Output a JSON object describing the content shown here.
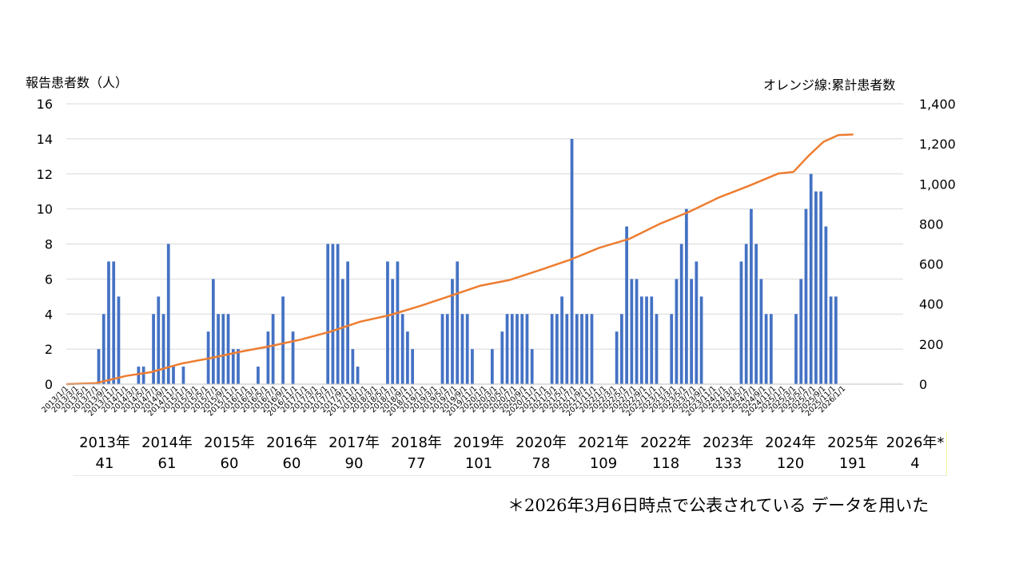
{
  "chart_data": {
    "type": "bar",
    "ylabel_left": "報告患者数（人）",
    "ylabel_right": "オレンジ線:累計患者数",
    "ylim_left": [
      0,
      16
    ],
    "ylim_right": [
      0,
      1400
    ],
    "yticks_left": [
      "0",
      "2",
      "4",
      "6",
      "8",
      "10",
      "12",
      "14",
      "16"
    ],
    "yticks_right": [
      "0",
      "200",
      "400",
      "600",
      "800",
      "1,000",
      "1,200",
      "1,400"
    ],
    "xticks": [
      "2013/1/1",
      "2013/3/1",
      "2013/5/1",
      "2013/7/1",
      "2013/9/1",
      "2013/11/1",
      "2014/1/1",
      "2014/3/1",
      "2014/5/1",
      "2014/7/1",
      "2014/9/1",
      "2014/11/1",
      "2015/1/1",
      "2015/3/1",
      "2015/5/1",
      "2015/7/1",
      "2015/9/1",
      "2015/11/1",
      "2016/1/1",
      "2016/3/1",
      "2016/5/1",
      "2016/7/1",
      "2016/9/1",
      "2016/11/1",
      "2017/1/1",
      "2017/3/1",
      "2017/5/1",
      "2017/7/1",
      "2017/9/1",
      "2017/11/1",
      "2018/1/1",
      "2018/3/1",
      "2018/5/1",
      "2018/7/1",
      "2018/9/1",
      "2018/11/1",
      "2019/1/1",
      "2019/3/1",
      "2019/5/1",
      "2019/7/1",
      "2019/9/1",
      "2019/11/1",
      "2020/1/1",
      "2020/3/1",
      "2020/5/1",
      "2020/7/1",
      "2020/9/1",
      "2020/11/1",
      "2021/1/1",
      "2021/3/1",
      "2021/5/1",
      "2021/7/1",
      "2021/9/1",
      "2021/11/1",
      "2022/1/1",
      "2022/3/1",
      "2022/5/1",
      "2022/7/1",
      "2022/9/1",
      "2022/11/1",
      "2023/1/1",
      "2023/3/1",
      "2023/5/1",
      "2023/7/1",
      "2023/9/1",
      "2023/11/1",
      "2024/1/1",
      "2024/3/1",
      "2024/5/1",
      "2024/7/1",
      "2024/9/1",
      "2024/11/1",
      "2025/1/1",
      "2025/3/1",
      "2025/5/1",
      "2025/7/1",
      "2025/9/1",
      "2025/11/1",
      "2026/1/1"
    ],
    "series": [
      {
        "name": "報告患者数",
        "type": "bar",
        "color": "#4472c4",
        "x": [
          "2013/7",
          "2013/8",
          "2013/9",
          "2013/10",
          "2013/11",
          "2014/3",
          "2014/4",
          "2014/6",
          "2014/7",
          "2014/8",
          "2014/9",
          "2014/10",
          "2014/12",
          "2015/5",
          "2015/6",
          "2015/7",
          "2015/8",
          "2015/9",
          "2015/10",
          "2015/11",
          "2016/3",
          "2016/5",
          "2016/6",
          "2016/8",
          "2016/10",
          "2017/5",
          "2017/6",
          "2017/7",
          "2017/8",
          "2017/9",
          "2017/10",
          "2017/11",
          "2018/5",
          "2018/6",
          "2018/7",
          "2018/8",
          "2018/9",
          "2018/10",
          "2019/4",
          "2019/5",
          "2019/6",
          "2019/7",
          "2019/8",
          "2019/9",
          "2019/10",
          "2020/2",
          "2020/4",
          "2020/5",
          "2020/6",
          "2020/7",
          "2020/8",
          "2020/9",
          "2020/10",
          "2021/2",
          "2021/3",
          "2021/4",
          "2021/5",
          "2021/6",
          "2021/7",
          "2021/8",
          "2021/9",
          "2021/10",
          "2022/3",
          "2022/4",
          "2022/5",
          "2022/6",
          "2022/7",
          "2022/8",
          "2022/9",
          "2022/10",
          "2022/11",
          "2023/2",
          "2023/3",
          "2023/4",
          "2023/5",
          "2023/6",
          "2023/7",
          "2023/8",
          "2024/4",
          "2024/5",
          "2024/6",
          "2024/7",
          "2024/8",
          "2024/9",
          "2024/10",
          "2025/3",
          "2025/4",
          "2025/5",
          "2025/6",
          "2025/7",
          "2025/8",
          "2025/9",
          "2025/10",
          "2025/11"
        ],
        "values": [
          2,
          4,
          7,
          7,
          5,
          1,
          1,
          4,
          5,
          4,
          8,
          1,
          1,
          3,
          6,
          4,
          4,
          4,
          2,
          2,
          1,
          3,
          4,
          5,
          3,
          8,
          8,
          8,
          6,
          7,
          2,
          1,
          7,
          6,
          7,
          4,
          3,
          2,
          4,
          4,
          6,
          7,
          4,
          4,
          2,
          2,
          3,
          4,
          4,
          4,
          4,
          4,
          2,
          4,
          4,
          5,
          4,
          14,
          4,
          4,
          4,
          4,
          3,
          4,
          9,
          6,
          6,
          5,
          5,
          5,
          4,
          4,
          6,
          8,
          10,
          6,
          7,
          5,
          7,
          8,
          10,
          8,
          6,
          4,
          4,
          4,
          6,
          10,
          12,
          11,
          11,
          9,
          5,
          5
        ]
      },
      {
        "name": "累計患者数",
        "type": "line",
        "color": "#ed7d31",
        "x": [
          "2013/1",
          "2013/7",
          "2014/1",
          "2014/6",
          "2014/12",
          "2015/6",
          "2015/12",
          "2016/6",
          "2016/12",
          "2017/6",
          "2017/12",
          "2018/6",
          "2018/12",
          "2019/6",
          "2019/12",
          "2020/6",
          "2020/12",
          "2021/6",
          "2021/12",
          "2022/6",
          "2022/12",
          "2023/6",
          "2023/12",
          "2024/6",
          "2024/12",
          "2025/3",
          "2025/6",
          "2025/9",
          "2025/12",
          "2026/3"
        ],
        "values": [
          0,
          5,
          41,
          60,
          102,
          130,
          162,
          190,
          222,
          262,
          312,
          345,
          390,
          440,
          491,
          520,
          569,
          620,
          681,
          725,
          799,
          860,
          932,
          990,
          1052,
          1060,
          1140,
          1210,
          1244,
          1247
        ]
      }
    ]
  },
  "year_table": {
    "years": [
      "2013年",
      "2014年",
      "2015年",
      "2016年",
      "2017年",
      "2018年",
      "2019年",
      "2020年",
      "2021年",
      "2022年",
      "2023年",
      "2024年",
      "2025年",
      "2026年*"
    ],
    "counts": [
      "41",
      "61",
      "60",
      "60",
      "90",
      "77",
      "101",
      "78",
      "109",
      "118",
      "133",
      "120",
      "191",
      "4"
    ]
  },
  "footnote": "＊2026年3月6日時点で公表されている データを用いた"
}
